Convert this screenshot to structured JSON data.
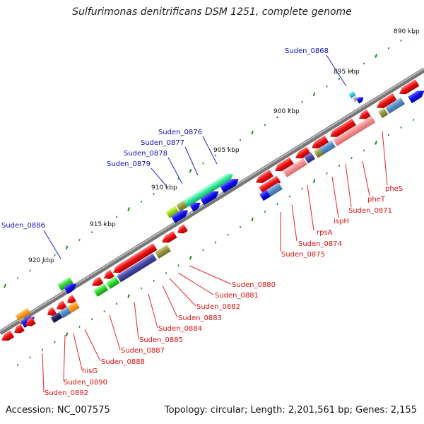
{
  "title": "Sulfurimonas denitrificans DSM 1251, complete genome",
  "footer": {
    "accession": "Accession: NC_007575",
    "summary": "Topology: circular; Length: 2,201,561 bp; Genes: 2,155"
  },
  "colors": {
    "axis": "#7f7f7f",
    "tick": "#1e8a1e",
    "label_forward": "#1010c0",
    "label_reverse": "#e01010",
    "leader_forward": "#2222cc",
    "leader_reverse": "#ee2222"
  },
  "scale_labels": [
    "890 kbp",
    "895 kbp",
    "900 kbp",
    "905 kbp",
    "910 kbp",
    "915 kbp",
    "920 kbp"
  ],
  "forward_labels": [
    "Suden_0868",
    "Suden_0876",
    "Suden_0877",
    "Suden_0878",
    "Suden_0879",
    "Suden_0886"
  ],
  "reverse_labels": [
    "pheS",
    "pheT",
    "Suden_0871",
    "ispH",
    "Suden_0874",
    "rpsA",
    "Suden_0875",
    "Suden_0880",
    "Suden_0881",
    "Suden_0882",
    "Suden_0883",
    "Suden_0884",
    "Suden_0885",
    "Suden_0887",
    "Suden_0888",
    "hisG",
    "Suden_0890",
    "Suden_0892"
  ]
}
